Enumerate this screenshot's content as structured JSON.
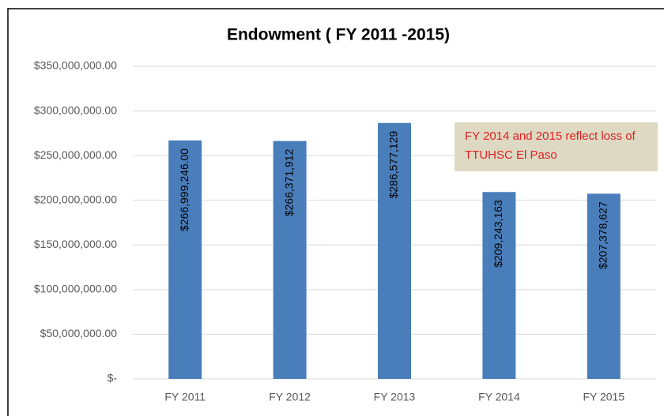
{
  "chart_data": {
    "type": "bar",
    "title": "Endowment ( FY 2011 -2015)",
    "categories": [
      "FY 2011",
      "FY 2012",
      "FY 2013",
      "FY 2014",
      "FY 2015"
    ],
    "values": [
      266999246,
      266371912,
      286577129,
      209243163,
      207378627
    ],
    "value_labels": [
      "$266,999,246.00",
      "$266,371,912",
      "$286,577,129",
      "$209,243,163",
      "$207,378,627"
    ],
    "color": "#4a7ebb",
    "ylim": [
      0,
      350000000
    ],
    "yticks": [
      {
        "value": 0,
        "label": "$-"
      },
      {
        "value": 50000000,
        "label": "$50,000,000.00"
      },
      {
        "value": 100000000,
        "label": "$100,000,000.00"
      },
      {
        "value": 150000000,
        "label": "$150,000,000.00"
      },
      {
        "value": 200000000,
        "label": "$200,000,000.00"
      },
      {
        "value": 250000000,
        "label": "$250,000,000.00"
      },
      {
        "value": 300000000,
        "label": "$300,000,000.00"
      },
      {
        "value": 350000000,
        "label": "$350,000,000.00"
      }
    ],
    "grid": true,
    "annotation": [
      "FY 2014 and 2015 reflect loss of",
      "TTUHSC El Paso"
    ]
  }
}
